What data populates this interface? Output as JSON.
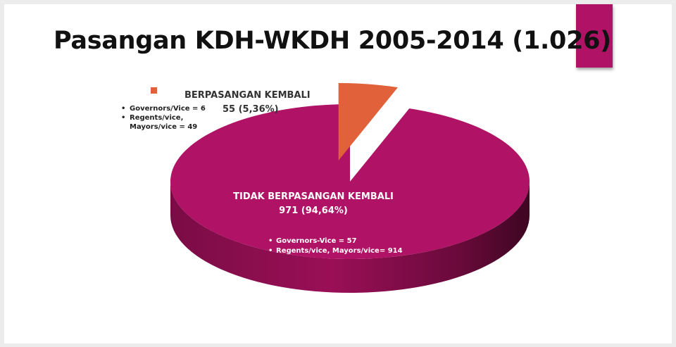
{
  "slide": {
    "title": "Pasangan KDH-WKDH 2005-2014 (1.026)",
    "accent_color": "#b01265"
  },
  "chart_data": {
    "type": "pie",
    "title": "Pasangan KDH-WKDH 2005-2014 (1.026)",
    "total": 1026,
    "slices": [
      {
        "name": "BERPASANGAN KEMBALI",
        "value": 55,
        "value_label": "55 (5,36%)",
        "percent": 5.36,
        "color": "#e0613a",
        "exploded": true,
        "breakdown": [
          "Governors/Vice = 6",
          "Regents/vice, Mayors/vice = 49"
        ]
      },
      {
        "name": "TIDAK BERPASANGAN KEMBALI",
        "value": 971,
        "value_label": "971 (94,64%)",
        "percent": 94.64,
        "color": "#b01265",
        "exploded": false,
        "breakdown": [
          "Governors-Vice = 57",
          "Regents/vice, Mayors/vice= 914"
        ]
      }
    ],
    "legend": "none",
    "style": "3d-pie"
  }
}
